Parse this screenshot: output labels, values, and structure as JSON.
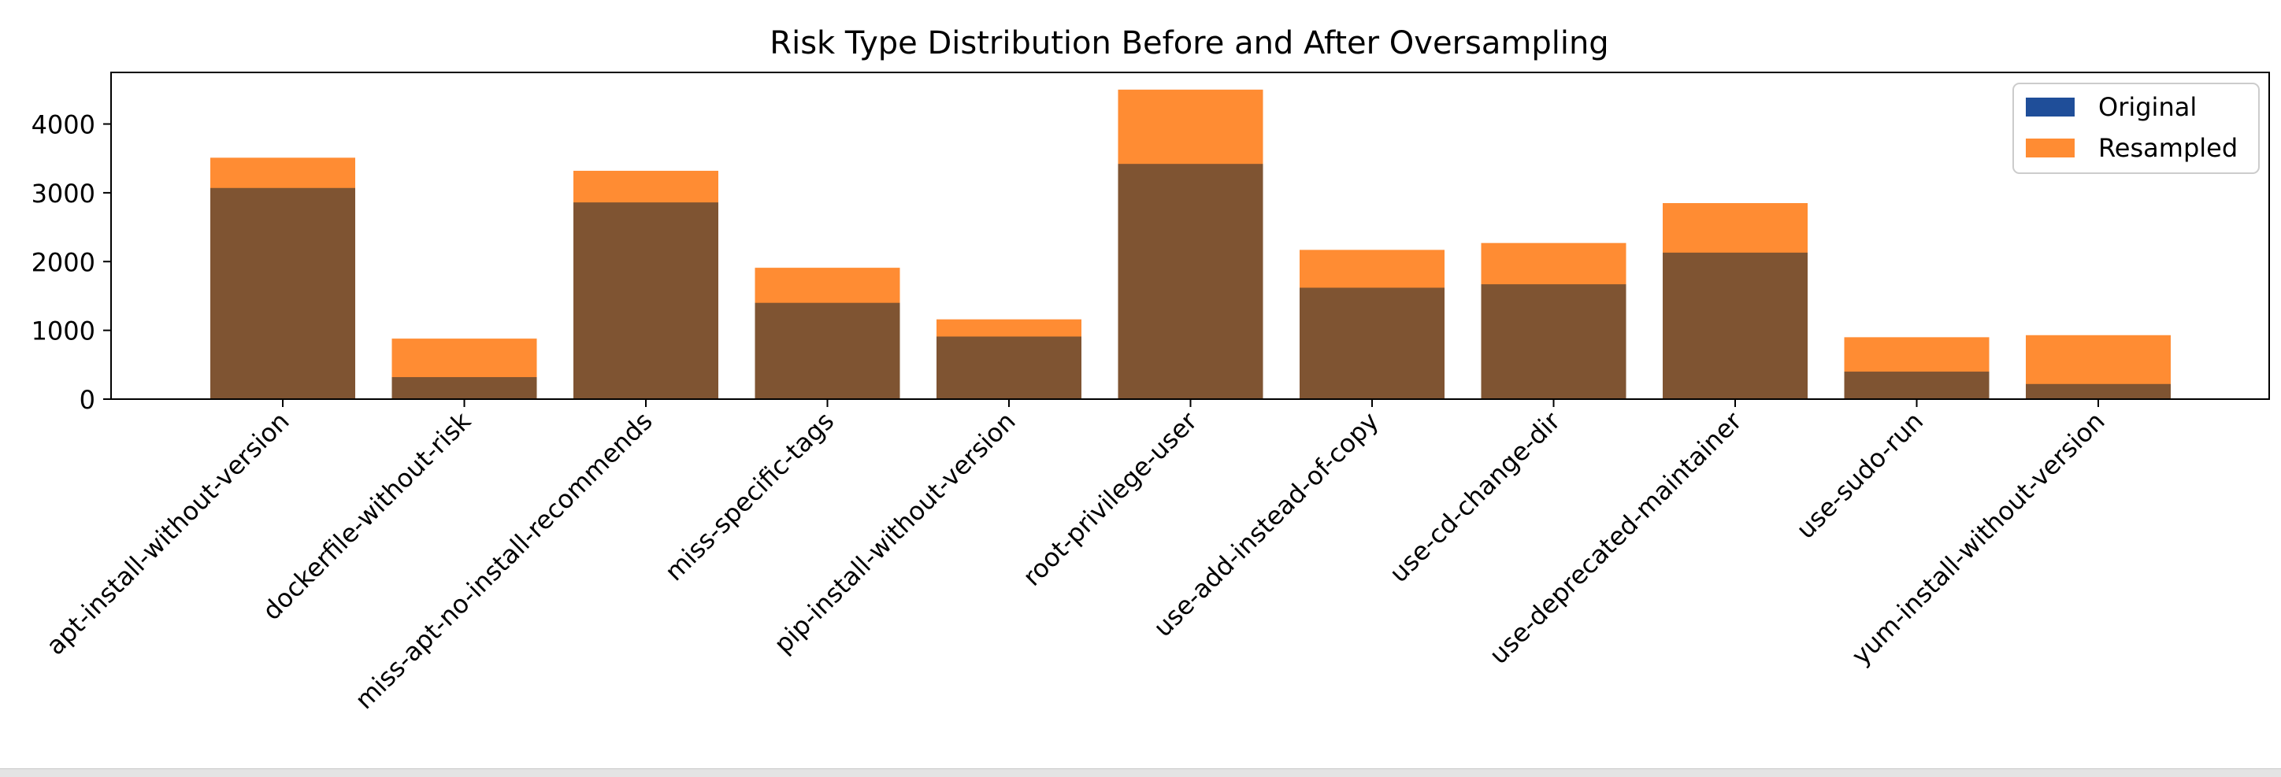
{
  "chart_data": {
    "type": "bar",
    "title": "Risk Type Distribution Before and After Oversampling",
    "xlabel": "",
    "ylabel": "",
    "ylim": [
      0,
      4750
    ],
    "yticks": [
      0,
      1000,
      2000,
      3000,
      4000
    ],
    "grid": false,
    "legend_position": "top-right",
    "categories": [
      "apt-install-without-version",
      "dockerfile-without-risk",
      "miss-apt-no-install-recommends",
      "miss-specific-tags",
      "pip-install-without-version",
      "root-privilege-user",
      "use-add-instead-of-copy",
      "use-cd-change-dir",
      "use-deprecated-maintainer",
      "use-sudo-run",
      "yum-install-without-version"
    ],
    "series": [
      {
        "name": "Original",
        "color": "#1f4e99",
        "values": [
          3070,
          320,
          2860,
          1400,
          910,
          3420,
          1620,
          1670,
          2130,
          400,
          220
        ]
      },
      {
        "name": "Resampled",
        "color": "#ff8c33",
        "values": [
          3510,
          880,
          3320,
          1910,
          1160,
          4500,
          2170,
          2270,
          2850,
          900,
          930
        ]
      }
    ],
    "overlap_color": "#7f5432"
  }
}
